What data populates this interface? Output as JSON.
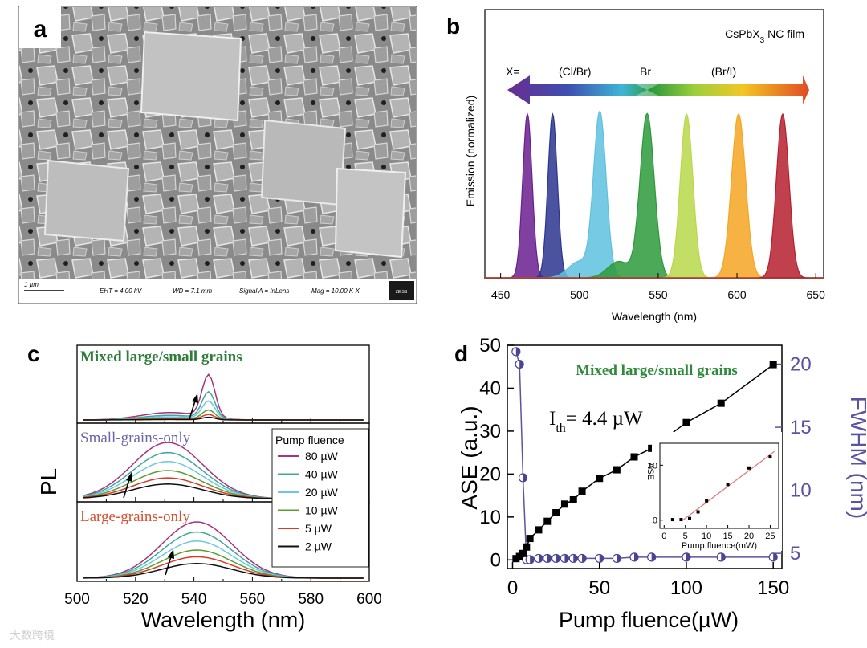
{
  "watermark": "大数跨境",
  "chart_data": [
    {
      "panel": "a",
      "type": "image",
      "image_kind": "SEM micrograph",
      "scale_bar": "1 µm",
      "info_bar": {
        "eht": "EHT = 4.00 kV",
        "wd": "WD = 7.1 mm",
        "signal": "Signal A = InLens",
        "mag": "Mag = 10.00 K X",
        "logo": "ZEISS"
      }
    },
    {
      "panel": "b",
      "type": "area",
      "title_main": "CsPbX",
      "title_sub": "3",
      "title_rest": " NC film",
      "xlabel": "Wavelength (nm)",
      "ylabel": "Emission (normalized)",
      "xlim": [
        440,
        655
      ],
      "ylim": [
        0,
        1
      ],
      "xticks": [
        450,
        500,
        550,
        600,
        650
      ],
      "arrow_labels": {
        "x": "X=",
        "left": "(Cl/Br)",
        "mid": "Br",
        "right": "(Br/I)"
      },
      "series": [
        {
          "center": 467,
          "width": 3.0,
          "color": "#6a1f8e"
        },
        {
          "center": 483,
          "width": 3.0,
          "color": "#2c3590"
        },
        {
          "center": 513,
          "width": 4.0,
          "color": "#5fc1df",
          "shoulder": 500
        },
        {
          "center": 543,
          "width": 4.5,
          "color": "#2c9a3b",
          "shoulder": 525
        },
        {
          "center": 568,
          "width": 4.0,
          "color": "#b8d84a"
        },
        {
          "center": 601,
          "width": 4.5,
          "color": "#f5a623"
        },
        {
          "center": 629,
          "width": 4.0,
          "color": "#b5202e"
        }
      ]
    },
    {
      "panel": "c",
      "type": "line",
      "xlabel": "Wavelength (nm)",
      "ylabel": "PL",
      "xlim": [
        500,
        600
      ],
      "xticks": [
        500,
        520,
        540,
        560,
        580,
        600
      ],
      "legend_title": "Pump fluence",
      "legend": [
        {
          "label": "80 µW",
          "color": "#a8327f"
        },
        {
          "label": "40 µW",
          "color": "#3fa89a"
        },
        {
          "label": "20 µW",
          "color": "#6fc6de"
        },
        {
          "label": "10 µW",
          "color": "#5a9e2f"
        },
        {
          "label": "5 µW",
          "color": "#d93a24"
        },
        {
          "label": "2 µW",
          "color": "#111111"
        }
      ],
      "subpanels": [
        {
          "label": "Mixed large/small grains",
          "label_color": "#2f7d3a",
          "peak_nm": 545,
          "amplitudes": [
            1.0,
            0.62,
            0.42,
            0.22,
            0.12,
            0.06
          ]
        },
        {
          "label": "Small-grains-only",
          "label_color": "#6b66a8",
          "peak_nm": 531,
          "amplitudes": [
            1.0,
            0.82,
            0.66,
            0.5,
            0.37,
            0.26
          ]
        },
        {
          "label": "Large-grains-only",
          "label_color": "#d8502e",
          "peak_nm": 541,
          "amplitudes": [
            1.0,
            0.82,
            0.66,
            0.5,
            0.38,
            0.26
          ]
        }
      ]
    },
    {
      "panel": "d",
      "type": "scatter",
      "title": "Mixed large/small grains",
      "annotation_I": "I",
      "annotation_sub": "th",
      "annotation_val": "= 4.4 µW",
      "xlabel": "Pump fluence(µW)",
      "ylabel": "ASE (a.u.)",
      "y2label": "FWHM (nm)",
      "xlim": [
        -3,
        155
      ],
      "ylim": [
        -2,
        50
      ],
      "y2lim": [
        3.8,
        21.5
      ],
      "xticks": [
        0,
        50,
        100,
        150
      ],
      "yticks": [
        0,
        10,
        20,
        30,
        40,
        50
      ],
      "y2ticks": [
        5,
        10,
        15,
        20
      ],
      "ase_series": {
        "name": "ASE",
        "x": [
          2,
          4,
          6,
          8,
          10,
          15,
          20,
          25,
          30,
          35,
          40,
          50,
          60,
          70,
          80,
          100,
          120,
          150
        ],
        "y": [
          0.3,
          0.8,
          1.5,
          3,
          5,
          7,
          9,
          11,
          13,
          14,
          16,
          19,
          21,
          24,
          26,
          32,
          36.5,
          45.5
        ]
      },
      "fwhm_series": {
        "name": "FWHM",
        "x": [
          2,
          4,
          6,
          8,
          10,
          15,
          20,
          25,
          30,
          35,
          40,
          50,
          60,
          70,
          80,
          100,
          120,
          150
        ],
        "y": [
          21,
          20,
          11,
          4.5,
          4.5,
          4.6,
          4.6,
          4.6,
          4.6,
          4.6,
          4.6,
          4.6,
          4.6,
          4.7,
          4.7,
          4.7,
          4.7,
          4.7
        ]
      },
      "inset": {
        "xlabel": "Pump fluence(mW)",
        "ylabel": "ASE",
        "xlim": [
          -1,
          27
        ],
        "ylim": [
          -1.5,
          14
        ],
        "xticks": [
          0,
          5,
          10,
          15,
          20,
          25
        ],
        "yticks": [
          0,
          10
        ],
        "x": [
          2,
          4,
          6,
          8,
          10,
          15,
          20,
          25
        ],
        "y": [
          0.1,
          0.1,
          0.3,
          1.5,
          3.5,
          6.5,
          9.5,
          11.5
        ],
        "fit": {
          "x": [
            4.4,
            26
          ],
          "y": [
            0,
            12.5
          ]
        }
      }
    }
  ]
}
